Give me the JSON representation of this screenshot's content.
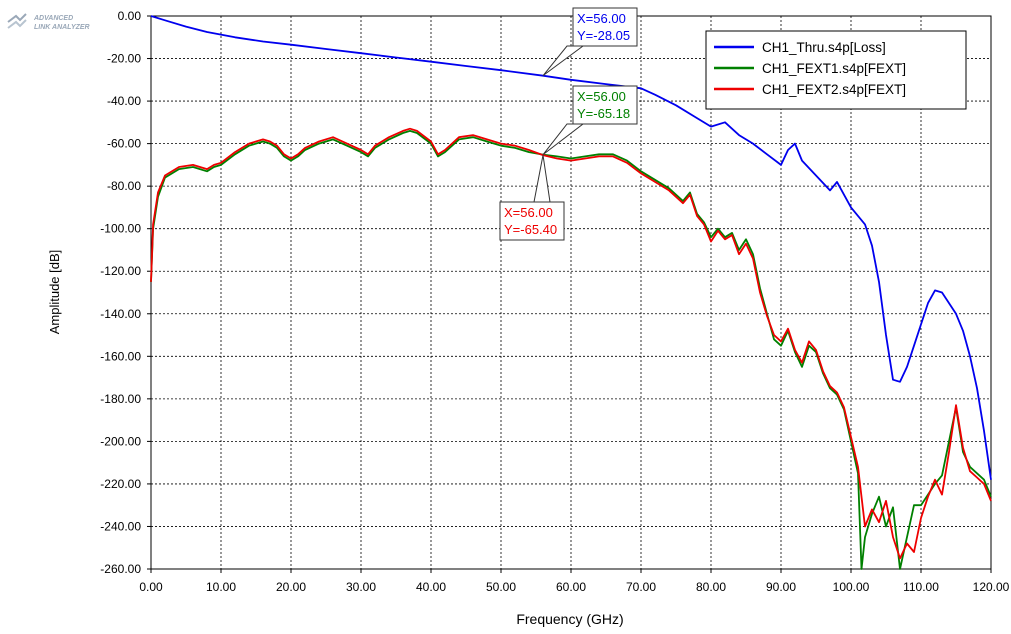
{
  "logo": {
    "line1": "ADVANCED",
    "line2": "LINK ANALYZER"
  },
  "chart_data": {
    "type": "line",
    "xlabel": "Frequency (GHz)",
    "ylabel": "Amplitude [dB]",
    "xlim": [
      0,
      120
    ],
    "ylim": [
      -260,
      0
    ],
    "x_ticks": [
      0,
      10,
      20,
      30,
      40,
      50,
      60,
      70,
      80,
      90,
      100,
      110,
      120
    ],
    "y_ticks": [
      0,
      -20,
      -40,
      -60,
      -80,
      -100,
      -120,
      -140,
      -160,
      -180,
      -200,
      -220,
      -240,
      -260
    ],
    "grid": true,
    "legend_position": "top-right",
    "series": [
      {
        "name": "CH1_Thru.s4p[Loss]",
        "color": "#0000ee",
        "points": [
          [
            0,
            0
          ],
          [
            2,
            -2
          ],
          [
            5,
            -5
          ],
          [
            8,
            -7.5
          ],
          [
            12,
            -10
          ],
          [
            16,
            -12
          ],
          [
            20,
            -13.5
          ],
          [
            25,
            -15.5
          ],
          [
            30,
            -17.5
          ],
          [
            35,
            -19.5
          ],
          [
            40,
            -21.5
          ],
          [
            45,
            -23.5
          ],
          [
            50,
            -25.5
          ],
          [
            56,
            -28.05
          ],
          [
            60,
            -30
          ],
          [
            65,
            -32
          ],
          [
            70,
            -34
          ],
          [
            72,
            -37
          ],
          [
            75,
            -42
          ],
          [
            78,
            -48
          ],
          [
            80,
            -52
          ],
          [
            82,
            -50
          ],
          [
            84,
            -56
          ],
          [
            86,
            -60
          ],
          [
            88,
            -65
          ],
          [
            90,
            -70
          ],
          [
            91,
            -63
          ],
          [
            92,
            -60
          ],
          [
            93,
            -68
          ],
          [
            95,
            -75
          ],
          [
            97,
            -82
          ],
          [
            98,
            -78
          ],
          [
            99,
            -84
          ],
          [
            100,
            -90
          ],
          [
            102,
            -98
          ],
          [
            103,
            -108
          ],
          [
            104,
            -125
          ],
          [
            105,
            -150
          ],
          [
            106,
            -171
          ],
          [
            107,
            -172
          ],
          [
            108,
            -165
          ],
          [
            109,
            -155
          ],
          [
            110,
            -145
          ],
          [
            111,
            -135
          ],
          [
            112,
            -129
          ],
          [
            113,
            -130
          ],
          [
            114,
            -135
          ],
          [
            115,
            -140
          ],
          [
            116,
            -148
          ],
          [
            117,
            -160
          ],
          [
            118,
            -175
          ],
          [
            119,
            -195
          ],
          [
            120,
            -218
          ]
        ]
      },
      {
        "name": "CH1_FEXT1.s4p[FEXT]",
        "color": "#008000",
        "points": [
          [
            0,
            -125
          ],
          [
            0.3,
            -100
          ],
          [
            1,
            -85
          ],
          [
            2,
            -76
          ],
          [
            4,
            -72
          ],
          [
            6,
            -71
          ],
          [
            8,
            -73
          ],
          [
            9,
            -71
          ],
          [
            10,
            -70
          ],
          [
            12,
            -65
          ],
          [
            14,
            -61
          ],
          [
            16,
            -59
          ],
          [
            17,
            -60
          ],
          [
            18,
            -62
          ],
          [
            19,
            -66
          ],
          [
            20,
            -68
          ],
          [
            21,
            -66
          ],
          [
            22,
            -63
          ],
          [
            24,
            -60
          ],
          [
            26,
            -58
          ],
          [
            28,
            -61
          ],
          [
            30,
            -64
          ],
          [
            31,
            -66
          ],
          [
            32,
            -62
          ],
          [
            34,
            -58
          ],
          [
            36,
            -55
          ],
          [
            37,
            -54
          ],
          [
            38,
            -55
          ],
          [
            40,
            -60
          ],
          [
            41,
            -66
          ],
          [
            42,
            -64
          ],
          [
            44,
            -58
          ],
          [
            46,
            -57
          ],
          [
            48,
            -59
          ],
          [
            50,
            -61
          ],
          [
            52,
            -62
          ],
          [
            54,
            -64
          ],
          [
            56,
            -65.18
          ],
          [
            58,
            -66
          ],
          [
            60,
            -67
          ],
          [
            62,
            -66
          ],
          [
            64,
            -65
          ],
          [
            66,
            -65
          ],
          [
            68,
            -68
          ],
          [
            70,
            -73
          ],
          [
            72,
            -77
          ],
          [
            74,
            -81
          ],
          [
            76,
            -87
          ],
          [
            77,
            -83
          ],
          [
            78,
            -93
          ],
          [
            79,
            -97
          ],
          [
            80,
            -104
          ],
          [
            81,
            -100
          ],
          [
            82,
            -104
          ],
          [
            83,
            -102
          ],
          [
            84,
            -110
          ],
          [
            85,
            -105
          ],
          [
            86,
            -112
          ],
          [
            87,
            -128
          ],
          [
            88,
            -140
          ],
          [
            89,
            -152
          ],
          [
            90,
            -155
          ],
          [
            91,
            -148
          ],
          [
            92,
            -158
          ],
          [
            93,
            -165
          ],
          [
            94,
            -155
          ],
          [
            95,
            -158
          ],
          [
            96,
            -168
          ],
          [
            97,
            -175
          ],
          [
            98,
            -178
          ],
          [
            99,
            -185
          ],
          [
            100,
            -200
          ],
          [
            101,
            -215
          ],
          [
            101.5,
            -260
          ],
          [
            102,
            -245
          ],
          [
            103,
            -234
          ],
          [
            104,
            -226
          ],
          [
            105,
            -240
          ],
          [
            106,
            -231
          ],
          [
            107,
            -260
          ],
          [
            108,
            -245
          ],
          [
            109,
            -230
          ],
          [
            110,
            -230
          ],
          [
            111,
            -225
          ],
          [
            112,
            -220
          ],
          [
            113,
            -216
          ],
          [
            114,
            -200
          ],
          [
            115,
            -184
          ],
          [
            116,
            -205
          ],
          [
            117,
            -212
          ],
          [
            118,
            -215
          ],
          [
            119,
            -218
          ],
          [
            120,
            -226
          ]
        ]
      },
      {
        "name": "CH1_FEXT2.s4p[FEXT]",
        "color": "#ee0000",
        "points": [
          [
            0,
            -125
          ],
          [
            0.3,
            -98
          ],
          [
            1,
            -83
          ],
          [
            2,
            -75
          ],
          [
            4,
            -71
          ],
          [
            6,
            -70
          ],
          [
            8,
            -72
          ],
          [
            9,
            -70
          ],
          [
            10,
            -69
          ],
          [
            12,
            -64
          ],
          [
            14,
            -60
          ],
          [
            16,
            -58
          ],
          [
            17,
            -59
          ],
          [
            18,
            -61
          ],
          [
            19,
            -65
          ],
          [
            20,
            -67
          ],
          [
            21,
            -65
          ],
          [
            22,
            -62
          ],
          [
            24,
            -59
          ],
          [
            26,
            -57
          ],
          [
            28,
            -60
          ],
          [
            30,
            -63
          ],
          [
            31,
            -65
          ],
          [
            32,
            -61
          ],
          [
            34,
            -57
          ],
          [
            36,
            -54
          ],
          [
            37,
            -53
          ],
          [
            38,
            -54
          ],
          [
            40,
            -59
          ],
          [
            41,
            -65
          ],
          [
            42,
            -63
          ],
          [
            44,
            -57
          ],
          [
            46,
            -56
          ],
          [
            48,
            -58
          ],
          [
            50,
            -60
          ],
          [
            52,
            -61
          ],
          [
            54,
            -63
          ],
          [
            56,
            -65.4
          ],
          [
            58,
            -67
          ],
          [
            60,
            -68
          ],
          [
            62,
            -67
          ],
          [
            64,
            -66
          ],
          [
            66,
            -66
          ],
          [
            68,
            -69
          ],
          [
            70,
            -74
          ],
          [
            72,
            -78
          ],
          [
            74,
            -82
          ],
          [
            76,
            -88
          ],
          [
            77,
            -84
          ],
          [
            78,
            -94
          ],
          [
            79,
            -98
          ],
          [
            80,
            -106
          ],
          [
            81,
            -101
          ],
          [
            82,
            -105
          ],
          [
            83,
            -103
          ],
          [
            84,
            -112
          ],
          [
            85,
            -107
          ],
          [
            86,
            -114
          ],
          [
            87,
            -130
          ],
          [
            88,
            -141
          ],
          [
            89,
            -150
          ],
          [
            90,
            -153
          ],
          [
            91,
            -147
          ],
          [
            92,
            -157
          ],
          [
            93,
            -163
          ],
          [
            94,
            -153
          ],
          [
            95,
            -157
          ],
          [
            96,
            -167
          ],
          [
            97,
            -174
          ],
          [
            98,
            -177
          ],
          [
            99,
            -184
          ],
          [
            100,
            -198
          ],
          [
            101,
            -212
          ],
          [
            102,
            -240
          ],
          [
            103,
            -232
          ],
          [
            104,
            -238
          ],
          [
            105,
            -228
          ],
          [
            106,
            -245
          ],
          [
            107,
            -255
          ],
          [
            108,
            -248
          ],
          [
            109,
            -252
          ],
          [
            110,
            -236
          ],
          [
            111,
            -226
          ],
          [
            112,
            -218
          ],
          [
            113,
            -225
          ],
          [
            114,
            -205
          ],
          [
            115,
            -183
          ],
          [
            116,
            -203
          ],
          [
            117,
            -214
          ],
          [
            118,
            -217
          ],
          [
            119,
            -220
          ],
          [
            120,
            -228
          ]
        ]
      }
    ],
    "annotations": [
      {
        "text_x": "X=56.00",
        "text_y": "Y=-28.05",
        "color": "#0000ee",
        "x": 56,
        "y": -28.05
      },
      {
        "text_x": "X=56.00",
        "text_y": "Y=-65.18",
        "color": "#008000",
        "x": 56,
        "y": -65.18
      },
      {
        "text_x": "X=56.00",
        "text_y": "Y=-65.40",
        "color": "#ee0000",
        "x": 56,
        "y": -65.4
      }
    ]
  }
}
